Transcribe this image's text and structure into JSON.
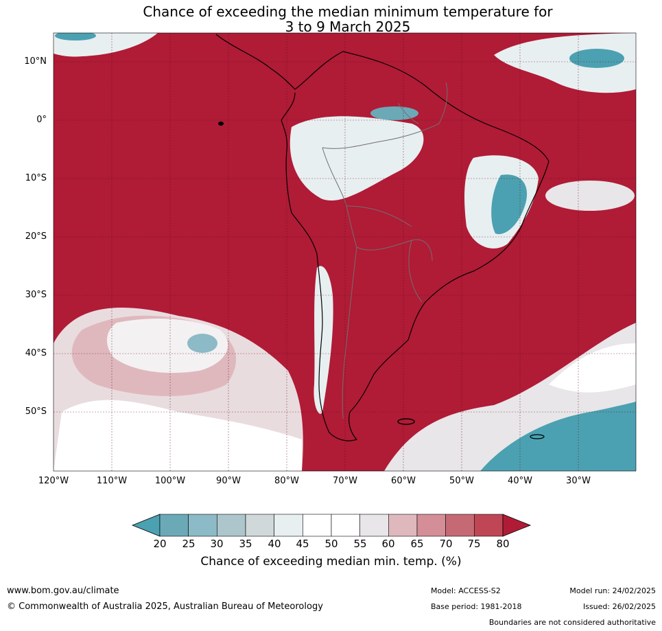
{
  "title": {
    "line1": "Chance of exceeding the median minimum temperature for",
    "line2": "3 to 9 March 2025"
  },
  "map": {
    "lat_labels": [
      "10°N",
      "0°",
      "10°S",
      "20°S",
      "30°S",
      "40°S",
      "50°S"
    ],
    "lon_labels": [
      "120°W",
      "110°W",
      "100°W",
      "90°W",
      "80°W",
      "70°W",
      "60°W",
      "50°W",
      "40°W",
      "30°W"
    ],
    "colors": {
      "dominant": "#b01b36",
      "low": "#4aa0b0",
      "ocean_mix": "#e8e8ea"
    }
  },
  "colorbar": {
    "ticks": [
      "20",
      "25",
      "30",
      "35",
      "40",
      "45",
      "50",
      "55",
      "60",
      "65",
      "70",
      "75",
      "80"
    ],
    "colors": [
      "#4ba1b1",
      "#6ba9b7",
      "#8cbac6",
      "#adc6cc",
      "#d0d8da",
      "#e8eff1",
      "#ffffff",
      "#ffffff",
      "#e8e6e8",
      "#dfb8be",
      "#d48e97",
      "#c56a74",
      "#bf4755",
      "#b01b36"
    ],
    "title": "Chance of exceeding median min. temp. (%)"
  },
  "footer": {
    "url": "www.bom.gov.au/climate",
    "copyright": "© Commonwealth of Australia 2025, Australian Bureau of Meteorology",
    "model": "Model: ACCESS-S2",
    "base_period": "Base period: 1981-2018",
    "model_run": "Model run: 24/02/2025",
    "issued": "Issued: 26/02/2025",
    "disclaimer": "Boundaries are not considered authoritative"
  }
}
